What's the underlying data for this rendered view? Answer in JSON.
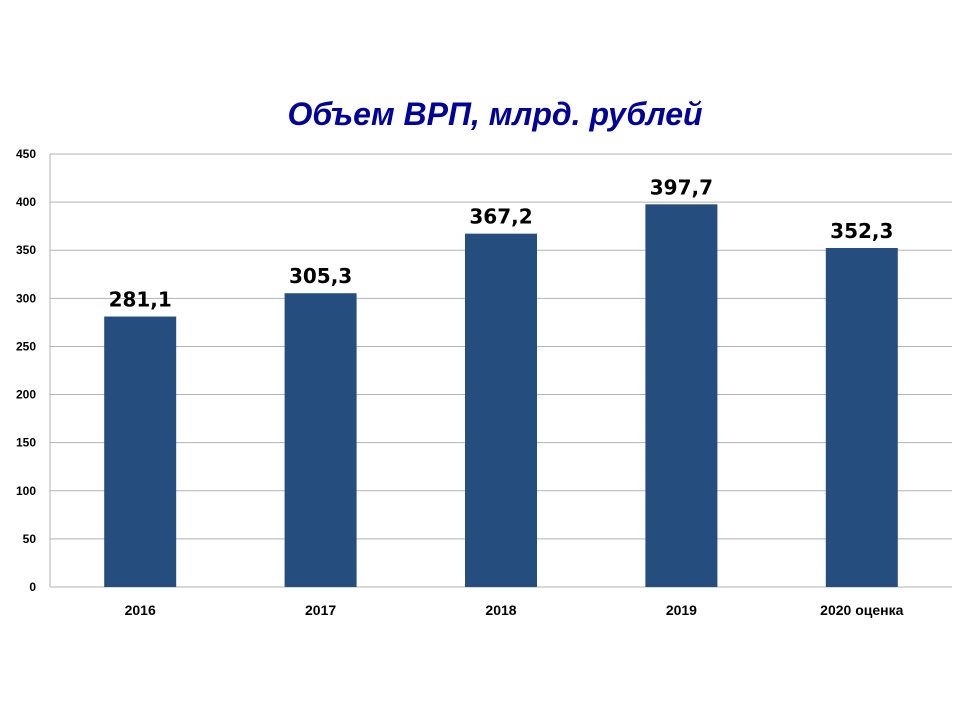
{
  "chart_data": {
    "type": "bar",
    "title": "Объем ВРП, млрд. рублей",
    "categories": [
      "2016",
      "2017",
      "2018",
      "2019",
      "2020 оценка"
    ],
    "values": [
      281.1,
      305.3,
      367.2,
      397.7,
      352.3
    ],
    "data_labels": [
      "281,1",
      "305,3",
      "367,2",
      "397,7",
      "352,3"
    ],
    "xlabel": "",
    "ylabel": "",
    "ylim": [
      0,
      450
    ],
    "yticks": [
      0,
      50,
      100,
      150,
      200,
      250,
      300,
      350,
      400,
      450
    ],
    "grid": true,
    "legend": "none",
    "bar_color": "#254E7F",
    "title_color": "#000099"
  }
}
